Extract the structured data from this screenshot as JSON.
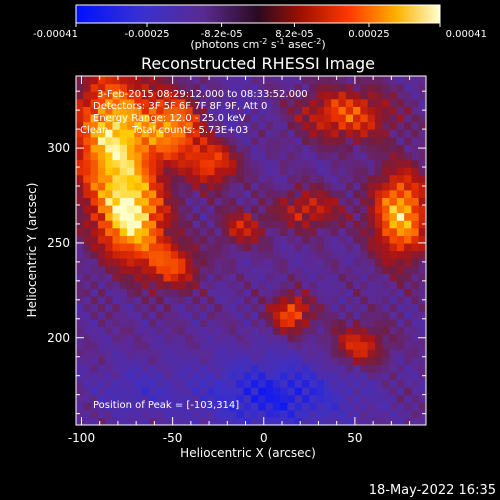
{
  "colorbar": {
    "ticks": [
      "-0.00041",
      "-0.00025",
      "-8.2e-05",
      "8.2e-05",
      "0.00025",
      "0.00041"
    ],
    "tick_values": [
      -0.00041,
      -0.00025,
      -8.2e-05,
      8.2e-05,
      0.00025,
      0.00041
    ],
    "range": [
      -0.00041,
      0.00041
    ],
    "units_prefix": "(photons cm",
    "units_exp1": "-2",
    "units_mid": " s",
    "units_exp2": "-1",
    "units_mid2": " asec",
    "units_exp3": "-2",
    "units_suffix": ")"
  },
  "title": "Reconstructed RHESSI Image",
  "annotations": {
    "time_range": "3-Feb-2015 08:29:12.000 to 08:33:52.000",
    "detectors": "Detectors: 3F 5F 6F 7F 8F 9F, Att 0",
    "energy_range": "Energy Range: 12.0 - 25.0 keV",
    "method": "Clean",
    "total_counts": "Total counts: 5.73E+03",
    "peak": "Position of Peak = [-103,314]"
  },
  "footer_date": "18-May-2022 16:35",
  "chart_data": {
    "type": "heatmap",
    "title": "Reconstructed RHESSI Image",
    "xlabel": "Heliocentric X (arcsec)",
    "ylabel": "Heliocentric Y (arcsec)",
    "xlim": [
      -103,
      89
    ],
    "ylim": [
      154,
      338
    ],
    "xticks": [
      -100,
      -50,
      0,
      50
    ],
    "xtick_labels": [
      "-100",
      "-50",
      "0",
      "50"
    ],
    "yticks": [
      200,
      250,
      300
    ],
    "ytick_labels": [
      "200",
      "250",
      "300"
    ],
    "colormap": [
      "#0000ff",
      "#5c2eaa",
      "#6a2880",
      "#a0142a",
      "#ff3800",
      "#ffc000",
      "#ffff80"
    ],
    "value_range": [
      -0.00041,
      0.00041
    ],
    "grid": false,
    "legend": "colorbar-top",
    "peak_position": [
      -103,
      314
    ],
    "hotspots": [
      {
        "x": -82,
        "y": 305,
        "peak": 0.00041,
        "sx": 16,
        "sy": 26
      },
      {
        "x": -72,
        "y": 262,
        "peak": 0.00035,
        "sx": 13,
        "sy": 16
      },
      {
        "x": -48,
        "y": 312,
        "peak": 0.00027,
        "sx": 11,
        "sy": 12
      },
      {
        "x": -28,
        "y": 292,
        "peak": 0.0002,
        "sx": 10,
        "sy": 9
      },
      {
        "x": -50,
        "y": 238,
        "peak": 0.00018,
        "sx": 11,
        "sy": 9
      },
      {
        "x": 75,
        "y": 265,
        "peak": 0.00036,
        "sx": 11,
        "sy": 17
      },
      {
        "x": 45,
        "y": 318,
        "peak": 0.00022,
        "sx": 18,
        "sy": 10
      },
      {
        "x": 15,
        "y": 213,
        "peak": 0.00024,
        "sx": 8,
        "sy": 7
      },
      {
        "x": 52,
        "y": 196,
        "peak": 0.00017,
        "sx": 11,
        "sy": 8
      },
      {
        "x": 25,
        "y": 268,
        "peak": 0.00014,
        "sx": 13,
        "sy": 8
      },
      {
        "x": -12,
        "y": 258,
        "peak": 0.00013,
        "sx": 9,
        "sy": 7
      }
    ],
    "cold_regions": [
      {
        "x": 5,
        "y": 170,
        "peak": -0.00035,
        "sx": 30,
        "sy": 14
      },
      {
        "x": -70,
        "y": 172,
        "peak": -0.0002,
        "sx": 16,
        "sy": 10
      },
      {
        "x": -20,
        "y": 318,
        "peak": -0.00016,
        "sx": 12,
        "sy": 10
      }
    ],
    "background": -9e-05
  }
}
